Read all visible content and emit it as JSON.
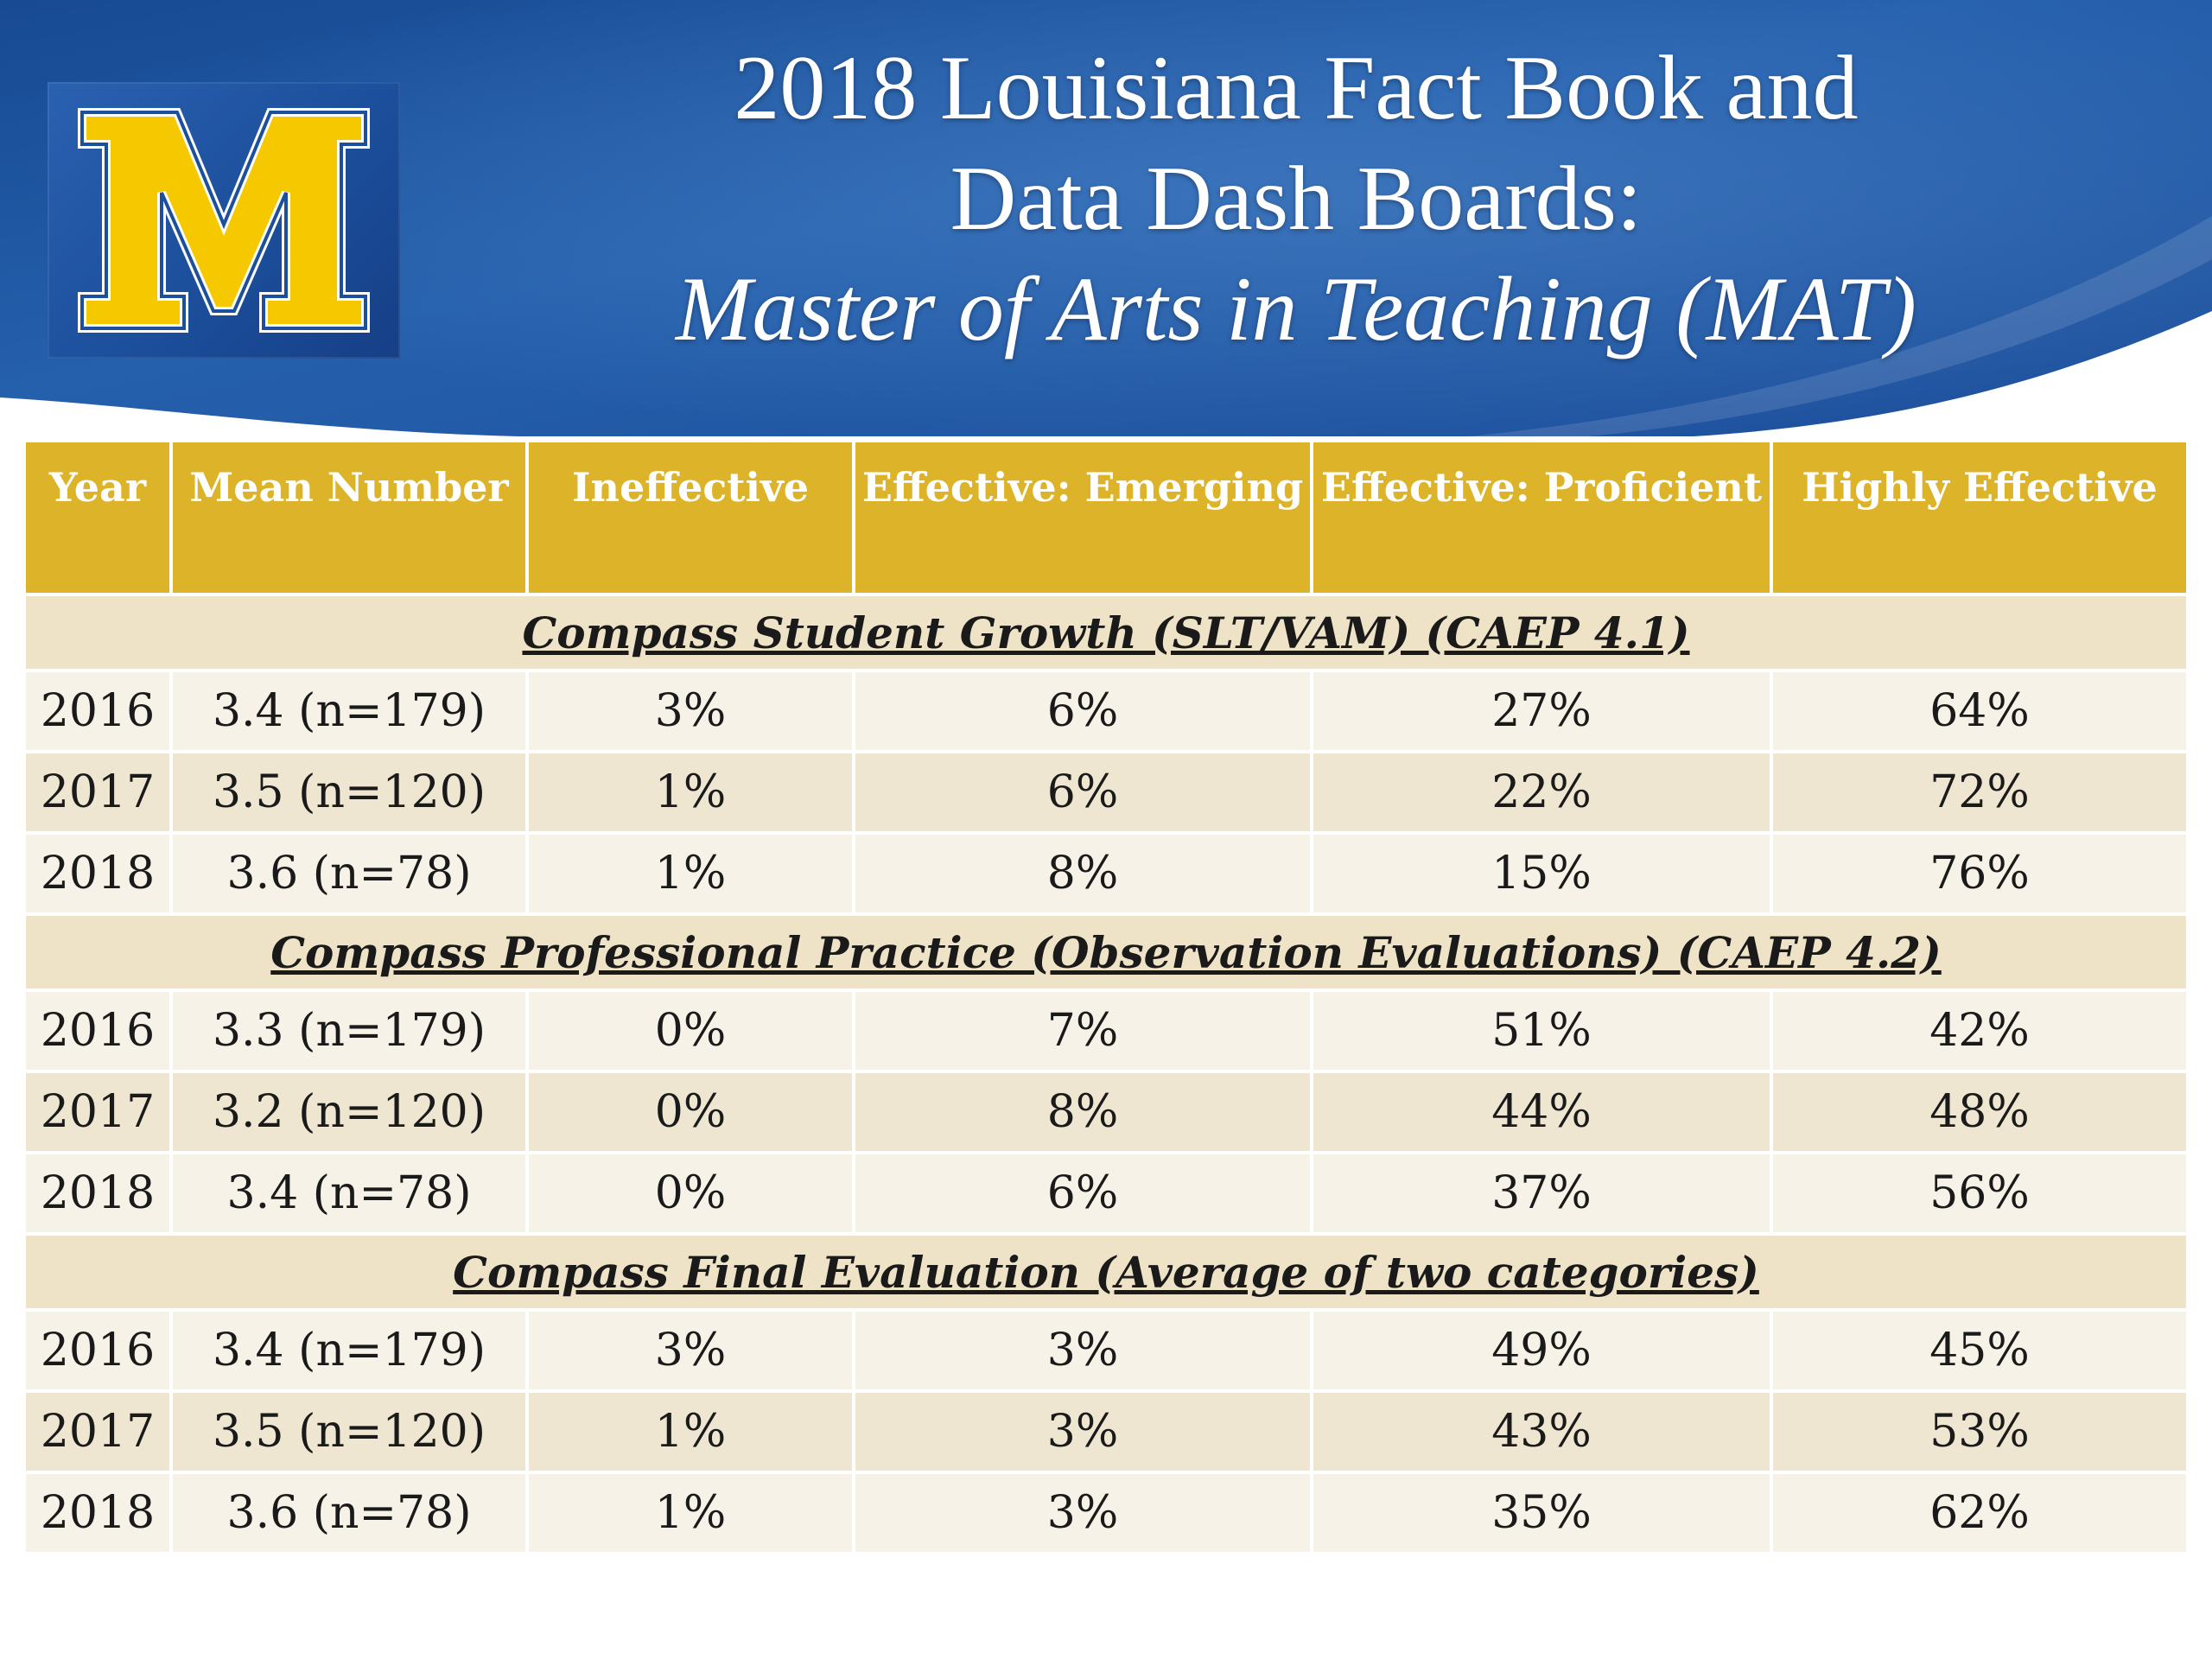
{
  "slide": {
    "title_line1": "2018 Louisiana Fact Book and",
    "title_line2": "Data Dash Boards:",
    "subtitle": "Master of  Arts in Teaching (MAT)",
    "logo": {
      "letter": "M",
      "colors": {
        "fill": "#f5c800",
        "outline": "#1c4f9c",
        "background": "#1c4f9c"
      }
    },
    "colors": {
      "header_bg": "#1d4f9a",
      "table_header": "#ddb32a",
      "section_bg": "#efe3c7",
      "row_light": "#f7f2e7",
      "row_dark": "#efe6d2"
    }
  },
  "table": {
    "headers": [
      "Year",
      "Mean Number",
      "Ineffective",
      "Effective: Emerging",
      "Effective: Proficient",
      "Highly Effective"
    ],
    "sections": [
      {
        "title": "Compass Student Growth (SLT/VAM) (CAEP 4.1)",
        "rows": [
          [
            "2016",
            "3.4 (n=179)",
            "3%",
            "6%",
            "27%",
            "64%"
          ],
          [
            "2017",
            "3.5 (n=120)",
            "1%",
            "6%",
            "22%",
            "72%"
          ],
          [
            "2018",
            "3.6 (n=78)",
            "1%",
            "8%",
            "15%",
            "76%"
          ]
        ]
      },
      {
        "title": "Compass Professional Practice  (Observation Evaluations) (CAEP 4.2)",
        "rows": [
          [
            "2016",
            "3.3 (n=179)",
            "0%",
            "7%",
            "51%",
            "42%"
          ],
          [
            "2017",
            "3.2 (n=120)",
            "0%",
            "8%",
            "44%",
            "48%"
          ],
          [
            "2018",
            "3.4 (n=78)",
            "0%",
            "6%",
            "37%",
            "56%"
          ]
        ]
      },
      {
        "title": "Compass Final Evaluation (Average of  two categories)",
        "rows": [
          [
            "2016",
            "3.4 (n=179)",
            "3%",
            "3%",
            "49%",
            "45%"
          ],
          [
            "2017",
            "3.5 (n=120)",
            "1%",
            "3%",
            "43%",
            "53%"
          ],
          [
            "2018",
            "3.6 (n=78)",
            "1%",
            "3%",
            "35%",
            "62%"
          ]
        ]
      }
    ]
  }
}
